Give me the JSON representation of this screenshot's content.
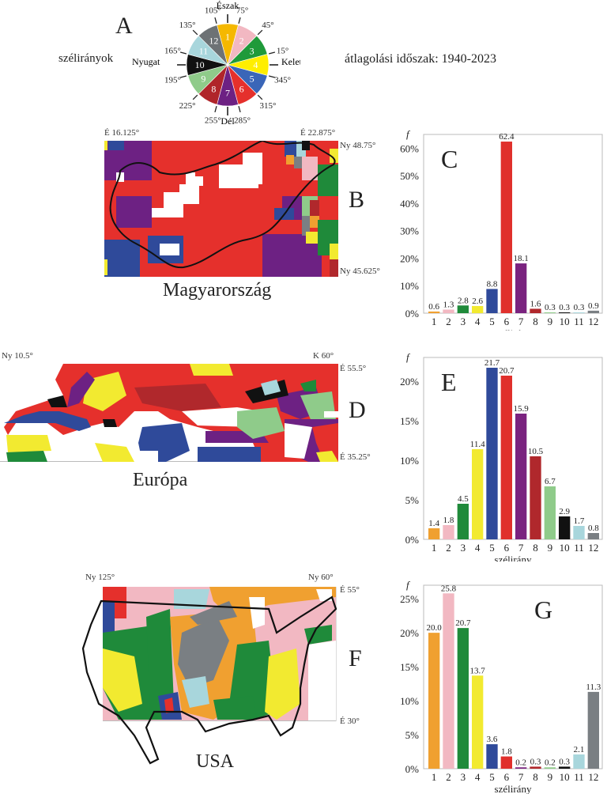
{
  "panel_a": {
    "letter": "A",
    "legend_label": "szélirányok",
    "period_label": "átlagolási időszak: 1940-2023",
    "directions": {
      "north": "Észak",
      "south": "Dél",
      "east": "Kelet",
      "west": "Nyugat"
    },
    "angles": [
      "105°",
      "75°",
      "45°",
      "15°",
      "345°",
      "315°",
      "285°",
      "255°",
      "225°",
      "195°",
      "165°",
      "135°"
    ],
    "sectors": [
      {
        "n": "1",
        "color": "#f5b800"
      },
      {
        "n": "2",
        "color": "#f2b8c2"
      },
      {
        "n": "3",
        "color": "#1f9a3a"
      },
      {
        "n": "4",
        "color": "#ffee00"
      },
      {
        "n": "5",
        "color": "#3a66b8"
      },
      {
        "n": "6",
        "color": "#e5302c"
      },
      {
        "n": "7",
        "color": "#6d2183"
      },
      {
        "n": "8",
        "color": "#b0252a"
      },
      {
        "n": "9",
        "color": "#8fcb8a"
      },
      {
        "n": "10",
        "color": "#111111"
      },
      {
        "n": "11",
        "color": "#a8d6dc"
      },
      {
        "n": "12",
        "color": "#6d7275"
      }
    ]
  },
  "panel_b": {
    "letter": "B",
    "caption": "Magyarország",
    "top_left": "É 16.125°",
    "top_right": "É 22.875°",
    "right_top": "Ny 48.75°",
    "right_bottom": "Ny 45.625°"
  },
  "panel_d": {
    "letter": "D",
    "caption": "Európa",
    "top_left": "Ny 10.5°",
    "top_right": "K 60°",
    "right_top": "É 55.5°",
    "right_bottom": "É 35.25°"
  },
  "panel_f": {
    "letter": "F",
    "caption": "USA",
    "top_left": "Ny 125°",
    "top_right": "Ny 60°",
    "right_top": "É 55°",
    "right_bottom": "É 30°"
  },
  "chart_data": [
    {
      "panel": "C",
      "type": "bar",
      "title": "C",
      "xlabel": "szélirány",
      "ylabel": "f",
      "categories": [
        "1",
        "2",
        "3",
        "4",
        "5",
        "6",
        "7",
        "8",
        "9",
        "10",
        "11",
        "12"
      ],
      "values": [
        0.6,
        1.3,
        2.8,
        2.6,
        8.8,
        62.4,
        18.1,
        1.6,
        0.3,
        0.3,
        0.3,
        0.9
      ],
      "ylim": [
        0,
        65
      ],
      "yticks": [
        "0%",
        "10%",
        "20%",
        "30%",
        "40%",
        "50%",
        "60%"
      ],
      "ytick_values": [
        0,
        10,
        20,
        30,
        40,
        50,
        60
      ],
      "grid": false
    },
    {
      "panel": "E",
      "type": "bar",
      "title": "E",
      "xlabel": "szélirány",
      "ylabel": "f",
      "categories": [
        "1",
        "2",
        "3",
        "4",
        "5",
        "6",
        "7",
        "8",
        "9",
        "10",
        "11",
        "12"
      ],
      "values": [
        1.4,
        1.8,
        4.5,
        11.4,
        21.7,
        20.7,
        15.9,
        10.5,
        6.7,
        2.9,
        1.7,
        0.8
      ],
      "ylim": [
        0,
        23
      ],
      "yticks": [
        "0%",
        "5%",
        "10%",
        "15%",
        "20%"
      ],
      "ytick_values": [
        0,
        5,
        10,
        15,
        20
      ],
      "grid": false
    },
    {
      "panel": "G",
      "type": "bar",
      "title": "G",
      "xlabel": "szélirány",
      "ylabel": "f",
      "categories": [
        "1",
        "2",
        "3",
        "4",
        "5",
        "6",
        "7",
        "8",
        "9",
        "10",
        "11",
        "12"
      ],
      "values": [
        20.0,
        25.8,
        20.7,
        13.7,
        3.6,
        1.8,
        0.2,
        0.3,
        0.2,
        0.3,
        2.1,
        11.3
      ],
      "ylim": [
        0,
        27
      ],
      "yticks": [
        "0%",
        "5%",
        "10%",
        "15%",
        "20%",
        "25%"
      ],
      "ytick_values": [
        0,
        5,
        10,
        15,
        20,
        25
      ],
      "grid": false
    }
  ],
  "bar_colors": [
    "#f0a030",
    "#f2b8c2",
    "#1f8a3a",
    "#f2ea30",
    "#2f4a9a",
    "#e0302c",
    "#7a237f",
    "#b0282c",
    "#8fcb8a",
    "#111111",
    "#a8d6dc",
    "#7a7f83"
  ]
}
